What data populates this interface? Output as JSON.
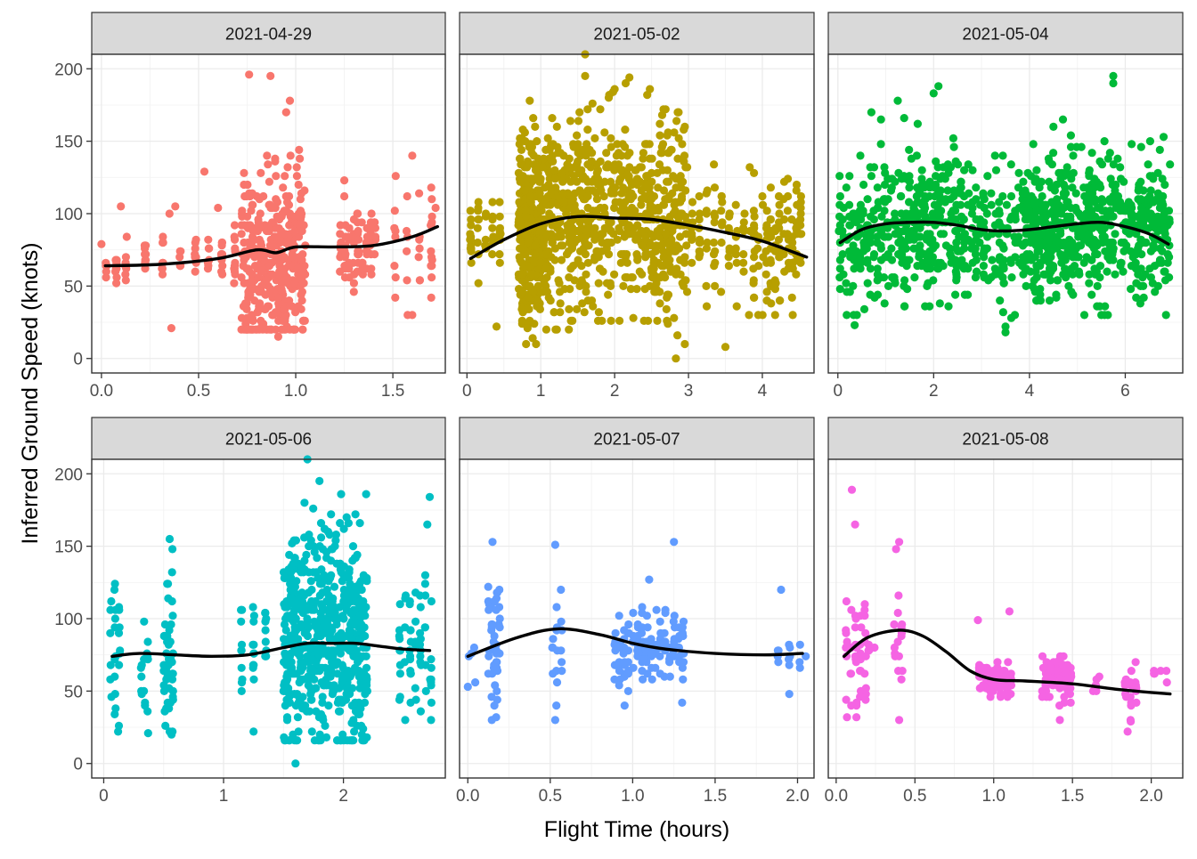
{
  "figure": {
    "xlabel": "Flight Time (hours)",
    "ylabel": "Inferred Ground Speed (knots)"
  },
  "colors": {
    "strip_fill": "#D9D9D9",
    "panel_border": "#333333",
    "grid_major": "#EBEBEB",
    "smooth_line": "#000000",
    "series": [
      "#F8766D",
      "#B79F00",
      "#00BA38",
      "#00BFC4",
      "#619CFF",
      "#F564E3"
    ]
  },
  "chart_data": [
    {
      "type": "scatter",
      "title": "2021-04-29",
      "xlim": [
        -0.05,
        1.77
      ],
      "ylim": [
        -10,
        210
      ],
      "xticks": [
        0.0,
        0.5,
        1.0,
        1.5
      ],
      "xtick_labels": [
        "0.0",
        "0.5",
        "1.0",
        "1.5"
      ],
      "yticks": [
        0,
        50,
        100,
        150,
        200
      ],
      "ytick_labels": [
        "0",
        "50",
        "100",
        "150",
        "200"
      ],
      "smooth": {
        "x": [
          0.02,
          0.3,
          0.6,
          0.8,
          0.9,
          1.0,
          1.2,
          1.4,
          1.6,
          1.73
        ],
        "y": [
          64,
          65,
          69,
          75,
          73,
          77,
          77,
          78,
          84,
          91
        ]
      },
      "clusters": [
        {
          "x0": 0.0,
          "x1": 0.15,
          "ymin": 48,
          "ymax": 70,
          "ymean": 63,
          "n": 22,
          "out": [
            [
              0.1,
              105
            ],
            [
              0.13,
              84
            ],
            [
              0.0,
              79
            ]
          ]
        },
        {
          "x0": 0.18,
          "x1": 0.45,
          "ymin": 50,
          "ymax": 87,
          "ymean": 68,
          "n": 25,
          "out": [
            [
              0.36,
              21
            ],
            [
              0.35,
              100
            ],
            [
              0.38,
              105
            ]
          ]
        },
        {
          "x0": 0.45,
          "x1": 0.72,
          "ymin": 52,
          "ymax": 95,
          "ymean": 70,
          "n": 40,
          "out": [
            [
              0.53,
              129
            ],
            [
              0.6,
              104
            ]
          ]
        },
        {
          "x0": 0.72,
          "x1": 1.05,
          "ymin": 20,
          "ymax": 180,
          "ymean": 65,
          "n": 380,
          "out": [
            [
              0.76,
              196
            ],
            [
              0.87,
              195
            ],
            [
              0.91,
              15
            ],
            [
              0.97,
              178
            ]
          ]
        },
        {
          "x0": 1.22,
          "x1": 1.42,
          "ymin": 45,
          "ymax": 100,
          "ymean": 78,
          "n": 80,
          "out": [
            [
              1.25,
              123
            ],
            [
              1.25,
              112
            ]
          ]
        },
        {
          "x0": 1.48,
          "x1": 1.73,
          "ymin": 30,
          "ymax": 142,
          "ymean": 80,
          "n": 35,
          "out": [
            [
              1.6,
              30
            ],
            [
              1.6,
              140
            ],
            [
              1.72,
              104
            ]
          ]
        }
      ]
    },
    {
      "type": "scatter",
      "title": "2021-05-02",
      "xlim": [
        -0.1,
        4.7
      ],
      "ylim": [
        -10,
        210
      ],
      "xticks": [
        0,
        1,
        2,
        3,
        4
      ],
      "xtick_labels": [
        "0",
        "1",
        "2",
        "3",
        "4"
      ],
      "yticks": [
        0,
        50,
        100,
        150,
        200
      ],
      "ytick_labels": [
        "0",
        "50",
        "100",
        "150",
        "200"
      ],
      "smooth": {
        "x": [
          0.05,
          0.5,
          1.0,
          1.5,
          2.0,
          2.5,
          3.0,
          3.5,
          4.0,
          4.6
        ],
        "y": [
          69,
          82,
          93,
          98,
          97,
          96,
          92,
          87,
          81,
          70
        ]
      },
      "clusters": [
        {
          "x0": 0.0,
          "x1": 0.5,
          "ymin": 25,
          "ymax": 108,
          "ymean": 82,
          "n": 45,
          "out": [
            [
              0.4,
              22
            ]
          ]
        },
        {
          "x0": 0.7,
          "x1": 1.0,
          "ymin": 10,
          "ymax": 178,
          "ymean": 88,
          "n": 300,
          "out": [
            [
              0.85,
              178
            ],
            [
              0.82,
              21
            ]
          ]
        },
        {
          "x0": 1.0,
          "x1": 1.6,
          "ymin": 20,
          "ymax": 170,
          "ymean": 98,
          "n": 260,
          "out": [
            [
              1.6,
              210
            ],
            [
              1.6,
              195
            ]
          ]
        },
        {
          "x0": 1.6,
          "x1": 2.6,
          "ymin": 25,
          "ymax": 190,
          "ymean": 97,
          "n": 320,
          "out": [
            [
              2.2,
              194
            ],
            [
              2.0,
              186
            ]
          ]
        },
        {
          "x0": 2.6,
          "x1": 3.0,
          "ymin": 15,
          "ymax": 200,
          "ymean": 94,
          "n": 150,
          "out": [
            [
              2.83,
              0
            ],
            [
              2.95,
              10
            ]
          ]
        },
        {
          "x0": 3.0,
          "x1": 3.8,
          "ymin": 30,
          "ymax": 140,
          "ymean": 88,
          "n": 70,
          "out": [
            [
              3.5,
              8
            ]
          ]
        },
        {
          "x0": 3.8,
          "x1": 4.55,
          "ymin": 30,
          "ymax": 152,
          "ymean": 80,
          "n": 120,
          "out": []
        }
      ]
    },
    {
      "type": "scatter",
      "title": "2021-05-04",
      "xlim": [
        -0.2,
        7.2
      ],
      "ylim": [
        -10,
        210
      ],
      "xticks": [
        0,
        2,
        4,
        6
      ],
      "xtick_labels": [
        "0",
        "2",
        "4",
        "6"
      ],
      "yticks": [
        0,
        50,
        100,
        150,
        200
      ],
      "ytick_labels": [
        "0",
        "50",
        "100",
        "150",
        "200"
      ],
      "smooth": {
        "x": [
          0.05,
          0.5,
          1.0,
          1.5,
          2.0,
          2.5,
          3.0,
          3.5,
          4.0,
          4.5,
          5.0,
          5.5,
          6.0,
          6.5,
          6.9
        ],
        "y": [
          80,
          89,
          93,
          94,
          94,
          92,
          89,
          88,
          89,
          91,
          93,
          94,
          91,
          86,
          79
        ]
      },
      "clusters": [
        {
          "x0": 0.0,
          "x1": 1.3,
          "ymin": 30,
          "ymax": 150,
          "ymean": 88,
          "n": 160,
          "out": [
            [
              0.35,
              23
            ],
            [
              0.7,
              170
            ],
            [
              0.9,
              165
            ]
          ]
        },
        {
          "x0": 1.3,
          "x1": 2.6,
          "ymin": 35,
          "ymax": 165,
          "ymean": 92,
          "n": 220,
          "out": [
            [
              1.25,
              178
            ],
            [
              2.1,
              188
            ],
            [
              2.0,
              183
            ]
          ]
        },
        {
          "x0": 2.6,
          "x1": 3.9,
          "ymin": 20,
          "ymax": 140,
          "ymean": 84,
          "n": 140,
          "out": [
            [
              3.5,
              22
            ],
            [
              3.5,
              18
            ]
          ]
        },
        {
          "x0": 3.9,
          "x1": 5.0,
          "ymin": 40,
          "ymax": 165,
          "ymean": 92,
          "n": 260,
          "out": [
            [
              4.7,
              165
            ],
            [
              4.5,
              160
            ]
          ]
        },
        {
          "x0": 5.0,
          "x1": 6.1,
          "ymin": 30,
          "ymax": 150,
          "ymean": 92,
          "n": 180,
          "out": [
            [
              5.5,
              30
            ],
            [
              5.75,
              195
            ],
            [
              5.75,
              190
            ]
          ]
        },
        {
          "x0": 6.1,
          "x1": 6.95,
          "ymin": 30,
          "ymax": 150,
          "ymean": 85,
          "n": 150,
          "out": [
            [
              6.85,
              30
            ],
            [
              6.8,
              153
            ]
          ]
        }
      ]
    },
    {
      "type": "scatter",
      "title": "2021-05-06",
      "xlim": [
        -0.1,
        2.85
      ],
      "ylim": [
        -10,
        210
      ],
      "xticks": [
        0,
        1,
        2
      ],
      "xtick_labels": [
        "0",
        "1",
        "2"
      ],
      "yticks": [
        0,
        50,
        100,
        150,
        200
      ],
      "ytick_labels": [
        "0",
        "50",
        "100",
        "150",
        "200"
      ],
      "smooth": {
        "x": [
          0.07,
          0.3,
          0.6,
          0.9,
          1.2,
          1.5,
          1.7,
          1.9,
          2.1,
          2.3,
          2.5,
          2.72
        ],
        "y": [
          74,
          76,
          75,
          74,
          75,
          80,
          83,
          83,
          83,
          81,
          79,
          78
        ]
      },
      "clusters": [
        {
          "x0": 0.04,
          "x1": 0.15,
          "ymin": 20,
          "ymax": 135,
          "ymean": 75,
          "n": 25,
          "out": [
            [
              0.12,
              22
            ]
          ]
        },
        {
          "x0": 0.3,
          "x1": 0.38,
          "ymin": 20,
          "ymax": 132,
          "ymean": 75,
          "n": 15,
          "out": [
            [
              0.37,
              21
            ]
          ]
        },
        {
          "x0": 0.5,
          "x1": 0.58,
          "ymin": 20,
          "ymax": 155,
          "ymean": 80,
          "n": 50,
          "out": [
            [
              0.55,
              155
            ],
            [
              0.55,
              22
            ]
          ]
        },
        {
          "x0": 1.1,
          "x1": 1.4,
          "ymin": 45,
          "ymax": 108,
          "ymean": 80,
          "n": 30,
          "out": [
            [
              1.25,
              22
            ]
          ]
        },
        {
          "x0": 1.5,
          "x1": 2.2,
          "ymin": 15,
          "ymax": 200,
          "ymean": 84,
          "n": 600,
          "out": [
            [
              1.6,
              0
            ],
            [
              1.7,
              210
            ],
            [
              1.8,
              195
            ],
            [
              2.1,
              172
            ]
          ]
        },
        {
          "x0": 2.45,
          "x1": 2.75,
          "ymin": 30,
          "ymax": 165,
          "ymean": 78,
          "n": 60,
          "out": [
            [
              2.72,
              184
            ],
            [
              2.7,
              165
            ]
          ]
        }
      ]
    },
    {
      "type": "scatter",
      "title": "2021-05-07",
      "xlim": [
        -0.05,
        2.1
      ],
      "ylim": [
        -10,
        210
      ],
      "xticks": [
        0.0,
        0.5,
        1.0,
        1.5,
        2.0
      ],
      "xtick_labels": [
        "0.0",
        "0.5",
        "1.0",
        "1.5",
        "2.0"
      ],
      "yticks": [
        0,
        50,
        100,
        150,
        200
      ],
      "ytick_labels": [
        "0",
        "50",
        "100",
        "150",
        "200"
      ],
      "smooth": {
        "x": [
          0.0,
          0.3,
          0.55,
          0.8,
          1.0,
          1.2,
          1.5,
          1.8,
          2.03
        ],
        "y": [
          74,
          87,
          93,
          89,
          83,
          79,
          76,
          75,
          76
        ]
      },
      "clusters": [
        {
          "x0": 0.0,
          "x1": 0.05,
          "ymin": 54,
          "ymax": 86,
          "ymean": 70,
          "n": 4,
          "out": [
            [
              0.0,
              53
            ]
          ]
        },
        {
          "x0": 0.12,
          "x1": 0.2,
          "ymin": 30,
          "ymax": 138,
          "ymean": 82,
          "n": 45,
          "out": [
            [
              0.15,
              153
            ]
          ]
        },
        {
          "x0": 0.5,
          "x1": 0.58,
          "ymin": 30,
          "ymax": 120,
          "ymean": 85,
          "n": 18,
          "out": [
            [
              0.53,
              151
            ],
            [
              0.53,
              30
            ]
          ]
        },
        {
          "x0": 0.88,
          "x1": 1.32,
          "ymin": 40,
          "ymax": 108,
          "ymean": 80,
          "n": 140,
          "out": [
            [
              1.25,
              153
            ],
            [
              1.1,
              127
            ],
            [
              1.3,
              42
            ]
          ]
        },
        {
          "x0": 1.85,
          "x1": 2.05,
          "ymin": 48,
          "ymax": 82,
          "ymean": 76,
          "n": 12,
          "out": [
            [
              1.9,
              120
            ],
            [
              1.95,
              48
            ],
            [
              2.05,
              74
            ]
          ]
        }
      ]
    },
    {
      "type": "scatter",
      "title": "2021-05-08",
      "xlim": [
        -0.05,
        2.2
      ],
      "ylim": [
        -10,
        210
      ],
      "xticks": [
        0.0,
        0.5,
        1.0,
        1.5,
        2.0
      ],
      "xtick_labels": [
        "0.0",
        "0.5",
        "1.0",
        "1.5",
        "2.0"
      ],
      "yticks": [
        0,
        50,
        100,
        150,
        200
      ],
      "ytick_labels": [
        "0",
        "50",
        "100",
        "150",
        "200"
      ],
      "smooth": {
        "x": [
          0.05,
          0.2,
          0.4,
          0.55,
          0.7,
          0.85,
          1.0,
          1.2,
          1.5,
          1.8,
          2.12
        ],
        "y": [
          74,
          87,
          92,
          88,
          77,
          64,
          58,
          57,
          55,
          51,
          48
        ]
      },
      "clusters": [
        {
          "x0": 0.05,
          "x1": 0.2,
          "ymin": 20,
          "ymax": 125,
          "ymean": 78,
          "n": 45,
          "out": [
            [
              0.1,
              189
            ],
            [
              0.12,
              165
            ]
          ]
        },
        {
          "x0": 0.2,
          "x1": 0.25,
          "ymin": 75,
          "ymax": 85,
          "ymean": 80,
          "n": 5,
          "out": []
        },
        {
          "x0": 0.36,
          "x1": 0.43,
          "ymin": 30,
          "ymax": 115,
          "ymean": 85,
          "n": 16,
          "out": [
            [
              0.4,
              153
            ],
            [
              0.38,
              148
            ],
            [
              0.4,
              30
            ]
          ]
        },
        {
          "x0": 0.9,
          "x1": 1.12,
          "ymin": 43,
          "ymax": 70,
          "ymean": 58,
          "n": 90,
          "out": [
            [
              0.9,
              99
            ],
            [
              1.1,
              105
            ]
          ]
        },
        {
          "x0": 1.3,
          "x1": 1.5,
          "ymin": 40,
          "ymax": 73,
          "ymean": 58,
          "n": 80,
          "out": [
            [
              1.42,
              30
            ]
          ]
        },
        {
          "x0": 1.62,
          "x1": 1.68,
          "ymin": 45,
          "ymax": 65,
          "ymean": 55,
          "n": 6,
          "out": []
        },
        {
          "x0": 1.82,
          "x1": 1.92,
          "ymin": 20,
          "ymax": 75,
          "ymean": 48,
          "n": 18,
          "out": [
            [
              1.85,
              22
            ],
            [
              1.87,
              29
            ]
          ]
        },
        {
          "x0": 2.0,
          "x1": 2.12,
          "ymin": 55,
          "ymax": 70,
          "ymean": 62,
          "n": 6,
          "out": []
        }
      ]
    }
  ]
}
